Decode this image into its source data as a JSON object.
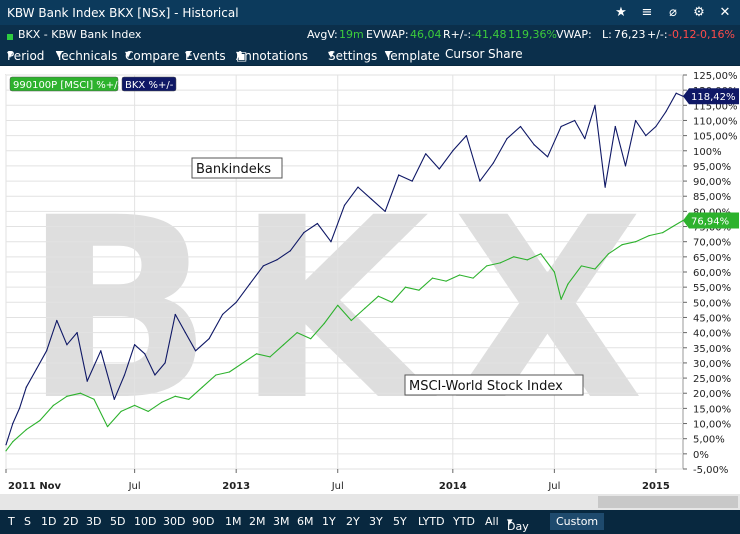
{
  "window": {
    "title": "KBW Bank Index BKX [NSx] - Historical"
  },
  "title_icons": [
    "star-icon",
    "list-icon",
    "unlink-icon",
    "settings-icon",
    "close-icon"
  ],
  "info": {
    "instrument": "BKX - KBW Bank Index",
    "avgv_label": "AvgV:",
    "avgv_value": "19m",
    "evwap_label": "EVWAP:",
    "evwap_value": "46,04",
    "rpm_label": "R+/-:",
    "rpm_value": "-41,48",
    "rpm_pct": "119,36%",
    "vwap_label": "VWAP:",
    "last_label": "L:",
    "last_value": "76,23",
    "pm_label": "+/-:",
    "pm_value": "-0,12",
    "pm_pct": "-0,16%"
  },
  "menu": {
    "period": "Period",
    "technicals": "Technicals",
    "compare": "Compare",
    "events": "Events",
    "annotations": "Annotations",
    "settings": "Settings",
    "template": "Template",
    "cursor": "Cursor",
    "share": "Share"
  },
  "bottom": {
    "buttons": [
      "T",
      "S",
      "1D",
      "2D",
      "3D",
      "5D",
      "10D",
      "30D",
      "90D",
      "1M",
      "2M",
      "3M",
      "6M",
      "1Y",
      "2Y",
      "3Y",
      "5Y",
      "LYTD",
      "YTD",
      "All"
    ],
    "interval": "Day",
    "custom": "Custom"
  },
  "colors": {
    "bkx": "#0f1866",
    "msci": "#2db22d",
    "watermark": "#dedede"
  },
  "chart_data": {
    "type": "line",
    "watermark": "BKX",
    "ylim": [
      -5,
      125
    ],
    "yticks": [
      "125,00%",
      "120,00%",
      "115,00%",
      "110,00%",
      "105,00%",
      "100%",
      "95,00%",
      "90,00%",
      "85,00%",
      "80,00%",
      "75,00%",
      "70,00%",
      "65,00%",
      "60,00%",
      "55,00%",
      "50,00%",
      "45,00%",
      "40,00%",
      "35,00%",
      "30,00%",
      "25,00%",
      "20,00%",
      "15,00%",
      "10,00%",
      "5,00%",
      "0%",
      "-5,00%"
    ],
    "xlabels": [
      "2011 Nov",
      "Jul",
      "2013",
      "Jul",
      "2014",
      "Jul",
      "2015"
    ],
    "xlabel_t": [
      0,
      0.19,
      0.34,
      0.49,
      0.66,
      0.81,
      0.96
    ],
    "legend": [
      "990100P [MSCI] %+/-",
      "BKX %+/-"
    ],
    "annotations": [
      "Bankindeks",
      "MSCI-World Stock Index"
    ],
    "series": [
      {
        "name": "BKX %+/-",
        "last_label": "118,42%",
        "t": [
          0,
          0.01,
          0.02,
          0.03,
          0.045,
          0.06,
          0.075,
          0.09,
          0.105,
          0.12,
          0.14,
          0.16,
          0.175,
          0.19,
          0.205,
          0.22,
          0.235,
          0.25,
          0.265,
          0.28,
          0.3,
          0.32,
          0.34,
          0.36,
          0.38,
          0.4,
          0.42,
          0.44,
          0.46,
          0.48,
          0.5,
          0.52,
          0.54,
          0.56,
          0.58,
          0.6,
          0.62,
          0.64,
          0.66,
          0.68,
          0.7,
          0.72,
          0.74,
          0.76,
          0.78,
          0.8,
          0.82,
          0.84,
          0.855,
          0.87,
          0.885,
          0.9,
          0.915,
          0.93,
          0.945,
          0.96,
          0.975,
          0.99,
          1.0
        ],
        "values": [
          3,
          10,
          15,
          22,
          28,
          34,
          44,
          36,
          40,
          24,
          34,
          18,
          26,
          36,
          33,
          26,
          30,
          46,
          40,
          34,
          38,
          46,
          50,
          56,
          62,
          64,
          67,
          73,
          76,
          70,
          82,
          88,
          84,
          80,
          92,
          90,
          99,
          94,
          100,
          105,
          90,
          96,
          104,
          108,
          102,
          98,
          108,
          110,
          104,
          115,
          88,
          108,
          95,
          110,
          105,
          108,
          113,
          119,
          118
        ]
      },
      {
        "name": "990100P [MSCI] %+/-",
        "last_label": "76,94%",
        "t": [
          0,
          0.01,
          0.03,
          0.05,
          0.07,
          0.09,
          0.11,
          0.13,
          0.15,
          0.17,
          0.19,
          0.21,
          0.23,
          0.25,
          0.27,
          0.29,
          0.31,
          0.33,
          0.35,
          0.37,
          0.39,
          0.41,
          0.43,
          0.45,
          0.47,
          0.49,
          0.51,
          0.53,
          0.55,
          0.57,
          0.59,
          0.61,
          0.63,
          0.65,
          0.67,
          0.69,
          0.71,
          0.73,
          0.75,
          0.77,
          0.79,
          0.81,
          0.82,
          0.83,
          0.85,
          0.87,
          0.89,
          0.91,
          0.93,
          0.95,
          0.97,
          0.985,
          1.0
        ],
        "values": [
          1,
          4,
          8,
          11,
          16,
          19,
          20,
          18,
          9,
          14,
          16,
          14,
          17,
          19,
          18,
          22,
          26,
          27,
          30,
          33,
          32,
          36,
          40,
          38,
          43,
          49,
          44,
          48,
          52,
          50,
          55,
          54,
          58,
          57,
          59,
          58,
          62,
          63,
          65,
          64,
          66,
          60,
          51,
          56,
          62,
          61,
          66,
          69,
          70,
          72,
          73,
          75,
          77
        ]
      }
    ]
  }
}
